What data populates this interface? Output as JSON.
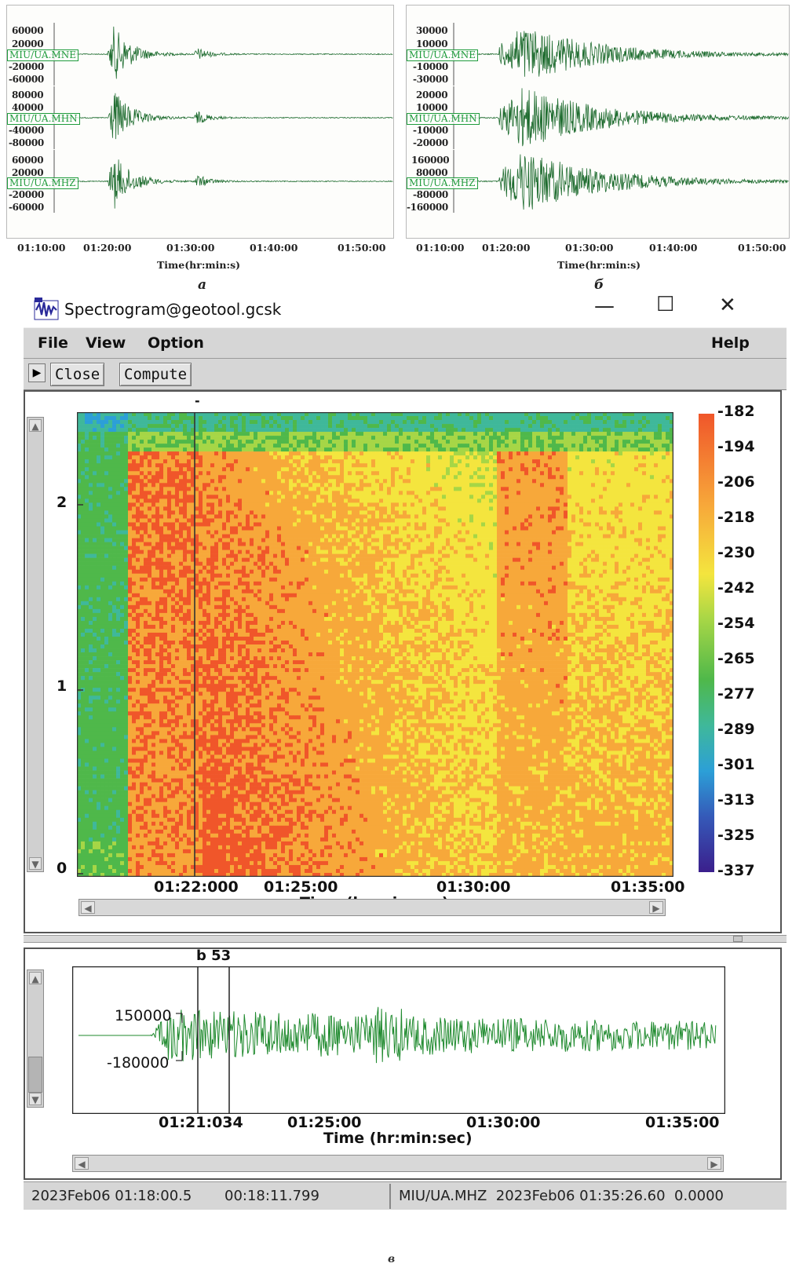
{
  "panel_a": {
    "letter": "а",
    "channels": [
      {
        "label": "MIU/UA.MNE",
        "ticks": [
          "60000",
          "20000",
          "-20000",
          "-60000"
        ]
      },
      {
        "label": "MIU/UA.MHN",
        "ticks": [
          "80000",
          "40000",
          "-40000",
          "-80000"
        ]
      },
      {
        "label": "MIU/UA.MHZ",
        "ticks": [
          "60000",
          "20000",
          "-20000",
          "-60000"
        ]
      }
    ],
    "x_ticks": [
      "01:10:00",
      "01:20:00",
      "01:30:00",
      "01:40:00",
      "01:50:00"
    ],
    "x_label": "Time(hr:min:s)"
  },
  "panel_b": {
    "letter": "б",
    "channels": [
      {
        "label": "MIU/UA.MNE",
        "ticks": [
          "30000",
          "10000",
          "-10000",
          "-30000"
        ]
      },
      {
        "label": "MIU/UA.MHN",
        "ticks": [
          "20000",
          "10000",
          "-10000",
          "-20000"
        ]
      },
      {
        "label": "MIU/UA.MHZ",
        "ticks": [
          "160000",
          "80000",
          "-80000",
          "-160000"
        ]
      }
    ],
    "x_ticks": [
      "01:10:00",
      "01:20:00",
      "01:30:00",
      "01:40:00",
      "01:50:00"
    ],
    "x_label": "Time(hr:min:s)"
  },
  "window": {
    "title": "Spectrogram@geotool.gcsk",
    "controls": {
      "minimize": "—",
      "maximize": "☐",
      "close": "✕"
    },
    "menu": {
      "file": "File",
      "view": "View",
      "option": "Option",
      "help": "Help"
    },
    "toolbar": {
      "close": "Close",
      "compute": "Compute"
    }
  },
  "spectrogram": {
    "y_ticks": [
      "2",
      "1",
      "0"
    ],
    "x_ticks": [
      "01:22:000",
      "01:25:00",
      "01:30:00",
      "01:35:00"
    ],
    "x_label": "Time (hr:min:sec)",
    "cursor_mark": "-",
    "colorbar": [
      "-182",
      "-194",
      "-206",
      "-218",
      "-230",
      "-242",
      "-254",
      "-265",
      "-277",
      "-289",
      "-301",
      "-313",
      "-325",
      "-337"
    ],
    "colors": {
      "hot": "#f0562a",
      "warm": "#f7a83a",
      "mid": "#f4e53e",
      "cool": "#4fb84a",
      "cold": "#2c9fd7",
      "min": "#3b1f8c"
    }
  },
  "waveform": {
    "marker": "b 53",
    "y_ticks": [
      "150000",
      "-180000"
    ],
    "x_ticks": [
      "01:21:034",
      "01:25:00",
      "01:30:00",
      "01:35:00"
    ],
    "x_label": "Time (hr:min:sec)",
    "color": "#1f8a2e"
  },
  "status": {
    "start": "2023Feb06 01:18:00.5",
    "duration": "00:18:11.799",
    "channel_end": "MIU/UA.MHZ  2023Feb06 01:35:26.60  0.0000"
  },
  "figure_letter": "в"
}
